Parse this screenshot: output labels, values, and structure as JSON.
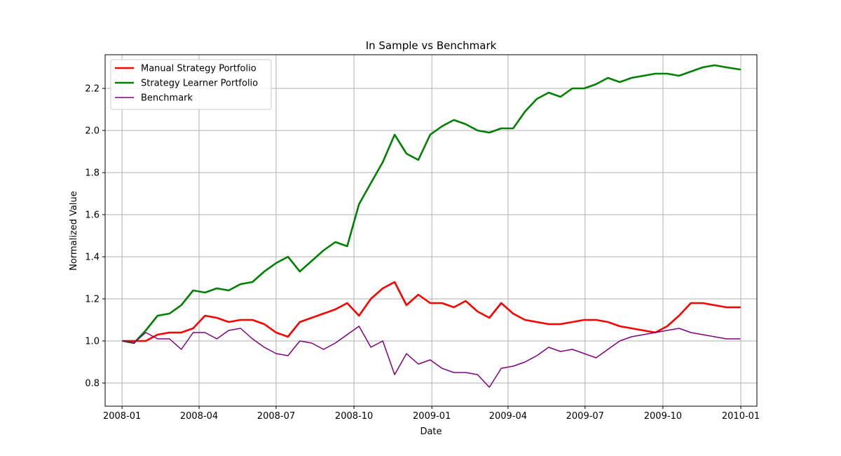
{
  "chart_data": {
    "type": "line",
    "title": "In Sample vs Benchmark",
    "xlabel": "Date",
    "ylabel": "Normalized Value",
    "x_ticks": [
      "2008-01",
      "2008-04",
      "2008-07",
      "2008-10",
      "2009-01",
      "2009-04",
      "2009-07",
      "2009-10",
      "2010-01"
    ],
    "y_ticks": [
      "0.8",
      "1.0",
      "1.2",
      "1.4",
      "1.6",
      "1.8",
      "2.0",
      "2.2"
    ],
    "xlim": [
      "2007-12-12",
      "2010-01-20"
    ],
    "ylim": [
      0.69,
      2.36
    ],
    "grid": true,
    "legend_position": "upper-left",
    "series": [
      {
        "name": "Manual Strategy Portfolio",
        "color": "#ff0000",
        "line_width": "thick",
        "x": [
          "2008-01-02",
          "2008-01-15",
          "2008-01-29",
          "2008-02-12",
          "2008-02-26",
          "2008-03-11",
          "2008-03-25",
          "2008-04-08",
          "2008-04-22",
          "2008-05-06",
          "2008-05-20",
          "2008-06-03",
          "2008-06-17",
          "2008-07-01",
          "2008-07-15",
          "2008-07-29",
          "2008-08-12",
          "2008-08-26",
          "2008-09-09",
          "2008-09-23",
          "2008-10-07",
          "2008-10-21",
          "2008-11-04",
          "2008-11-18",
          "2008-12-02",
          "2008-12-16",
          "2008-12-30",
          "2009-01-13",
          "2009-01-27",
          "2009-02-10",
          "2009-02-24",
          "2009-03-10",
          "2009-03-24",
          "2009-04-07",
          "2009-04-21",
          "2009-05-05",
          "2009-05-19",
          "2009-06-02",
          "2009-06-16",
          "2009-06-30",
          "2009-07-14",
          "2009-07-28",
          "2009-08-11",
          "2009-08-25",
          "2009-09-08",
          "2009-09-22",
          "2009-10-06",
          "2009-10-20",
          "2009-11-03",
          "2009-11-17",
          "2009-12-01",
          "2009-12-15",
          "2009-12-31"
        ],
        "values": [
          1.0,
          1.0,
          1.0,
          1.03,
          1.04,
          1.04,
          1.06,
          1.12,
          1.11,
          1.09,
          1.1,
          1.1,
          1.08,
          1.04,
          1.02,
          1.09,
          1.11,
          1.13,
          1.15,
          1.18,
          1.12,
          1.2,
          1.25,
          1.28,
          1.17,
          1.22,
          1.18,
          1.18,
          1.16,
          1.19,
          1.14,
          1.11,
          1.18,
          1.13,
          1.1,
          1.09,
          1.08,
          1.08,
          1.09,
          1.1,
          1.1,
          1.09,
          1.07,
          1.06,
          1.05,
          1.04,
          1.07,
          1.12,
          1.18,
          1.18,
          1.17,
          1.16,
          1.16
        ]
      },
      {
        "name": "Strategy Learner Portfolio",
        "color": "#008000",
        "line_width": "thick",
        "x": [
          "2008-01-02",
          "2008-01-15",
          "2008-01-29",
          "2008-02-12",
          "2008-02-26",
          "2008-03-11",
          "2008-03-25",
          "2008-04-08",
          "2008-04-22",
          "2008-05-06",
          "2008-05-20",
          "2008-06-03",
          "2008-06-17",
          "2008-07-01",
          "2008-07-15",
          "2008-07-29",
          "2008-08-12",
          "2008-08-26",
          "2008-09-09",
          "2008-09-23",
          "2008-10-07",
          "2008-10-21",
          "2008-11-04",
          "2008-11-18",
          "2008-12-02",
          "2008-12-16",
          "2008-12-30",
          "2009-01-13",
          "2009-01-27",
          "2009-02-10",
          "2009-02-24",
          "2009-03-10",
          "2009-03-24",
          "2009-04-07",
          "2009-04-21",
          "2009-05-05",
          "2009-05-19",
          "2009-06-02",
          "2009-06-16",
          "2009-06-30",
          "2009-07-14",
          "2009-07-28",
          "2009-08-11",
          "2009-08-25",
          "2009-09-08",
          "2009-09-22",
          "2009-10-06",
          "2009-10-20",
          "2009-11-03",
          "2009-11-17",
          "2009-12-01",
          "2009-12-15",
          "2009-12-31"
        ],
        "values": [
          1.0,
          0.99,
          1.05,
          1.12,
          1.13,
          1.17,
          1.24,
          1.23,
          1.25,
          1.24,
          1.27,
          1.28,
          1.33,
          1.37,
          1.4,
          1.33,
          1.38,
          1.43,
          1.47,
          1.45,
          1.65,
          1.75,
          1.85,
          1.98,
          1.89,
          1.86,
          1.98,
          2.02,
          2.05,
          2.03,
          2.0,
          1.99,
          2.01,
          2.01,
          2.09,
          2.15,
          2.18,
          2.16,
          2.2,
          2.2,
          2.22,
          2.25,
          2.23,
          2.25,
          2.26,
          2.27,
          2.27,
          2.26,
          2.28,
          2.3,
          2.31,
          2.3,
          2.29
        ]
      },
      {
        "name": "Benchmark",
        "color": "#800080",
        "line_width": "thin",
        "x": [
          "2008-01-02",
          "2008-01-15",
          "2008-01-29",
          "2008-02-12",
          "2008-02-26",
          "2008-03-11",
          "2008-03-25",
          "2008-04-08",
          "2008-04-22",
          "2008-05-06",
          "2008-05-20",
          "2008-06-03",
          "2008-06-17",
          "2008-07-01",
          "2008-07-15",
          "2008-07-29",
          "2008-08-12",
          "2008-08-26",
          "2008-09-09",
          "2008-09-23",
          "2008-10-07",
          "2008-10-21",
          "2008-11-04",
          "2008-11-18",
          "2008-12-02",
          "2008-12-16",
          "2008-12-30",
          "2009-01-13",
          "2009-01-27",
          "2009-02-10",
          "2009-02-24",
          "2009-03-10",
          "2009-03-24",
          "2009-04-07",
          "2009-04-21",
          "2009-05-05",
          "2009-05-19",
          "2009-06-02",
          "2009-06-16",
          "2009-06-30",
          "2009-07-14",
          "2009-07-28",
          "2009-08-11",
          "2009-08-25",
          "2009-09-08",
          "2009-09-22",
          "2009-10-06",
          "2009-10-20",
          "2009-11-03",
          "2009-11-17",
          "2009-12-01",
          "2009-12-15",
          "2009-12-31"
        ],
        "values": [
          1.0,
          0.99,
          1.04,
          1.01,
          1.01,
          0.96,
          1.04,
          1.04,
          1.01,
          1.05,
          1.06,
          1.01,
          0.97,
          0.94,
          0.93,
          1.0,
          0.99,
          0.96,
          0.99,
          1.03,
          1.07,
          0.97,
          1.0,
          0.84,
          0.94,
          0.89,
          0.91,
          0.87,
          0.85,
          0.85,
          0.84,
          0.78,
          0.87,
          0.88,
          0.9,
          0.93,
          0.97,
          0.95,
          0.96,
          0.94,
          0.92,
          0.96,
          1.0,
          1.02,
          1.03,
          1.04,
          1.05,
          1.06,
          1.04,
          1.03,
          1.02,
          1.01,
          1.01
        ]
      }
    ]
  }
}
